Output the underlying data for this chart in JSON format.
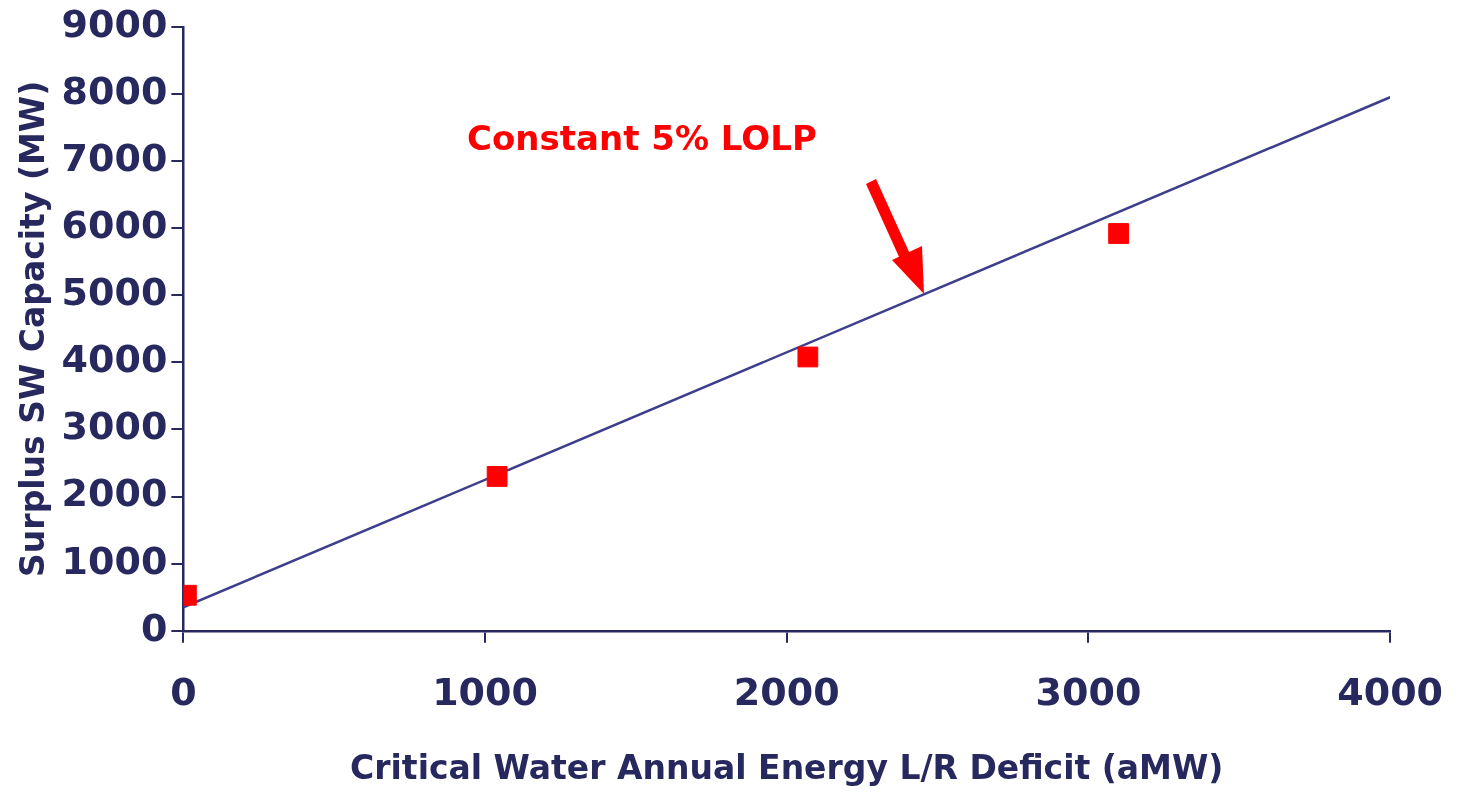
{
  "chart_data": {
    "type": "scatter",
    "xlabel": "Critical Water Annual Energy L/R Deficit (aMW)",
    "ylabel": "Surplus SW Capacity (MW)",
    "xlim": [
      0,
      4000
    ],
    "xticks": [
      0,
      1000,
      2000,
      3000,
      4000
    ],
    "ylim": [
      0,
      9000
    ],
    "yticks": [
      0,
      1000,
      2000,
      3000,
      4000,
      5000,
      6000,
      7000,
      8000,
      9000
    ],
    "grid": false,
    "legend": false,
    "annotations": [
      "Constant 5% LOLP"
    ],
    "series": [
      {
        "type": "scatter",
        "color": "#ff0000",
        "marker": "square",
        "x": [
          10,
          1040,
          2070,
          3100
        ],
        "values": [
          530,
          2300,
          4080,
          5920
        ]
      },
      {
        "type": "line",
        "color": "#3d3f8c",
        "marker": "none",
        "line_style": "solid",
        "x": [
          0,
          4000
        ],
        "values": [
          350,
          7950
        ]
      }
    ]
  }
}
